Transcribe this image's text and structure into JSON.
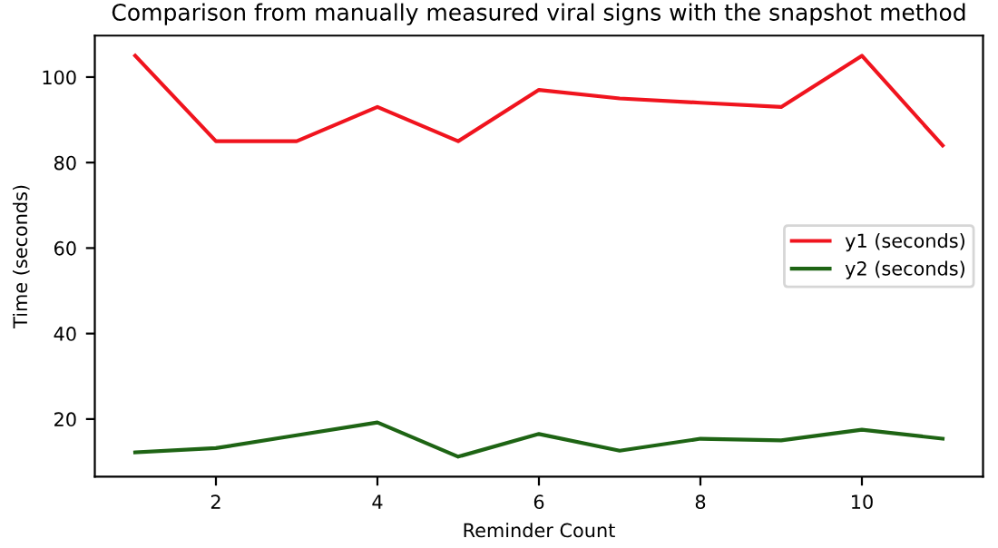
{
  "chart_data": {
    "type": "line",
    "title": "Comparison from manually measured viral signs with the snapshot method",
    "xlabel": "Reminder Count",
    "ylabel": "Time (seconds)",
    "x": [
      1,
      2,
      3,
      4,
      5,
      6,
      7,
      8,
      9,
      10,
      11
    ],
    "series": [
      {
        "name": "y1 (seconds)",
        "color": "#f0141e",
        "values": [
          105,
          85,
          85,
          93,
          85,
          97,
          95,
          94,
          93,
          105,
          84
        ]
      },
      {
        "name": "y2 (seconds)",
        "color": "#1e6414",
        "values": [
          12.2,
          13.2,
          16.2,
          19.2,
          11.2,
          16.5,
          12.6,
          15.4,
          15.0,
          17.5,
          15.4
        ]
      }
    ],
    "xlim": [
      0.5,
      11.5
    ],
    "xticks": [
      2,
      4,
      6,
      8,
      10
    ],
    "ylim": [
      6.5,
      109.7
    ],
    "yticks": [
      20,
      40,
      60,
      80,
      100
    ],
    "grid": false,
    "legend": "center right"
  }
}
